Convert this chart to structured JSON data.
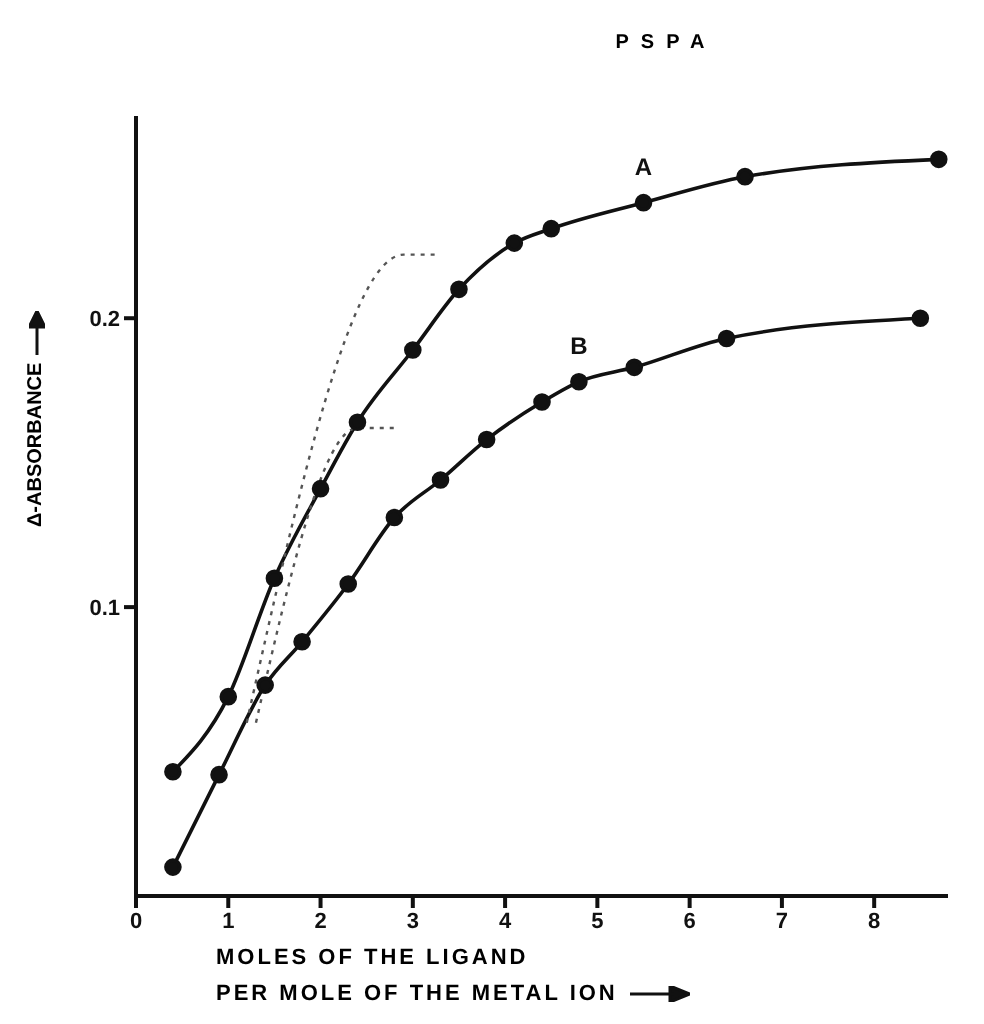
{
  "chart_data": {
    "type": "line",
    "title": "PSPA",
    "xlabel": "MOLES OF THE LIGAND\nPER MOLE OF THE METAL ION",
    "ylabel": "Δ-ABSORBANCE",
    "xlim": [
      0,
      8.8
    ],
    "xticks": [
      0,
      1,
      2,
      3,
      4,
      5,
      6,
      7,
      8
    ],
    "ylim": [
      0,
      0.27
    ],
    "yticks": [
      0.1,
      0.2
    ],
    "marker": "circle",
    "line_style": "solid",
    "series": [
      {
        "name": "A",
        "color": "#111111",
        "x": [
          0.4,
          1.0,
          1.5,
          2.0,
          2.4,
          3.0,
          3.5,
          4.1,
          4.5,
          5.5,
          6.6,
          8.7
        ],
        "values": [
          0.043,
          0.069,
          0.11,
          0.141,
          0.164,
          0.189,
          0.21,
          0.226,
          0.231,
          0.24,
          0.249,
          0.255
        ]
      },
      {
        "name": "B",
        "color": "#111111",
        "x": [
          0.4,
          0.9,
          1.4,
          1.8,
          2.3,
          2.8,
          3.3,
          3.8,
          4.4,
          4.8,
          5.4,
          6.4,
          8.5
        ],
        "values": [
          0.01,
          0.042,
          0.073,
          0.088,
          0.108,
          0.131,
          0.144,
          0.158,
          0.171,
          0.178,
          0.183,
          0.193,
          0.2
        ]
      },
      {
        "color": "#555555",
        "marker": "none",
        "line_style": "dotted",
        "x": [
          1.2,
          2.9,
          3.3
        ],
        "values": [
          0.06,
          0.222,
          0.222
        ]
      },
      {
        "color": "#555555",
        "marker": "none",
        "line_style": "dotted",
        "x": [
          1.3,
          2.4,
          2.8
        ],
        "values": [
          0.06,
          0.162,
          0.162
        ]
      }
    ]
  }
}
